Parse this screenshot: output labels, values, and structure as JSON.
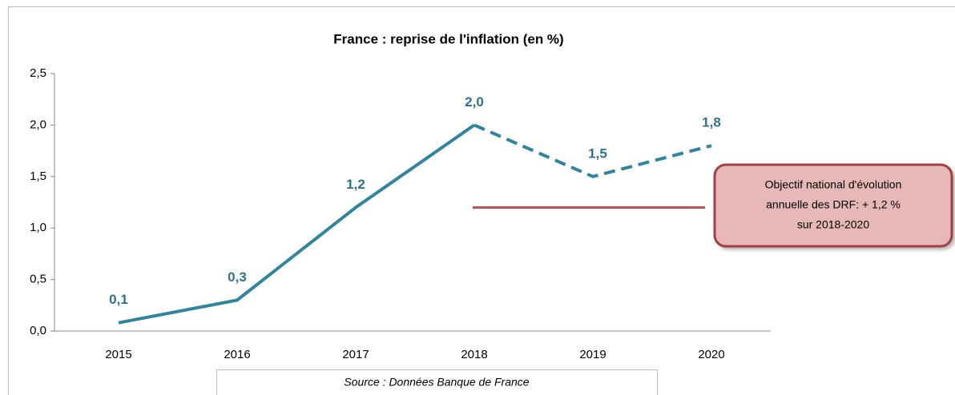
{
  "chart_data": {
    "type": "line",
    "title": "France : reprise de l'inflation (en %)",
    "categories": [
      "2015",
      "2016",
      "2017",
      "2018",
      "2019",
      "2020"
    ],
    "values": [
      0.08,
      0.3,
      1.2,
      2.0,
      1.5,
      1.8
    ],
    "value_labels": [
      "0,1",
      "0,3",
      "1,2",
      "2,0",
      "1,5",
      "1,8"
    ],
    "color": "#31849b",
    "dashed_from_index": 3,
    "ylim": [
      0,
      2.5
    ],
    "yticks": [
      {
        "value": 0,
        "label": "0,0"
      },
      {
        "value": 0.5,
        "label": "0,5"
      },
      {
        "value": 1,
        "label": "1,0"
      },
      {
        "value": 1.5,
        "label": "1,5"
      },
      {
        "value": 2,
        "label": "2,0"
      },
      {
        "value": 2.5,
        "label": "2,5"
      }
    ],
    "reference_line": {
      "value": 1.2,
      "color": "#c0504d"
    },
    "annotation": [
      "Objectif national d'évolution",
      "annuelle des DRF: + 1,2 %",
      "sur 2018-2020"
    ],
    "source": "Source : Données Banque de France"
  }
}
